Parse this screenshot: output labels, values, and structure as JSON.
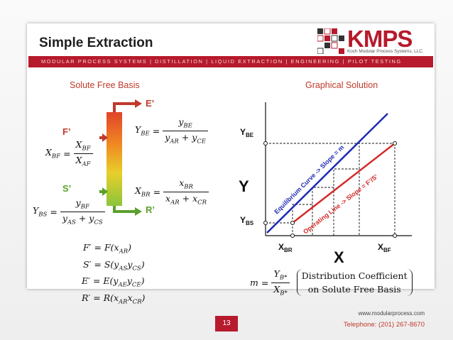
{
  "slide": {
    "title": "Simple Extraction",
    "banner": "MODULAR PROCESS SYSTEMS | DISTILLATION | LIQUID EXTRACTION | ENGINEERING | PILOT TESTING",
    "page_number": "13",
    "footer_website": "www.modularprocess.com",
    "footer_phone": "Telephone: (201) 267-8670"
  },
  "logo": {
    "word": "KMPS",
    "subtitle": "Koch Modular Process Systems, LLC."
  },
  "left_panel": {
    "heading": "Solute Free Basis",
    "streams": {
      "extract_out": "E’",
      "feed_in": "F’",
      "solvent_in": "S’",
      "raffinate_out": "R’"
    },
    "definitions": [
      "F′ = F(x_AR)",
      "S′ = S(y_AS y_CS)",
      "E′ = E(y_AE y_CE)",
      "R′ = R(x_AR x_CR)"
    ]
  },
  "right_panel": {
    "heading": "Graphical Solution",
    "y_axis_label": "Y",
    "x_axis_label": "X",
    "tick_y_top": "Y",
    "tick_y_top_sub": "BE",
    "tick_y_bottom": "Y",
    "tick_y_bottom_sub": "BS",
    "tick_x_left": "X",
    "tick_x_left_sub": "BR",
    "tick_x_right": "X",
    "tick_x_right_sub": "BF",
    "equilibrium_label": "Equilibrium Curve -> Slope = m",
    "operating_label": "Operating Line -> Slope = F’/S’",
    "slope_text_line1": "Distribution Coefficient",
    "slope_text_line2": "on Solute Free Basis",
    "colors": {
      "equilibrium": "#1f2bb5",
      "operating": "#d42a2a"
    }
  }
}
